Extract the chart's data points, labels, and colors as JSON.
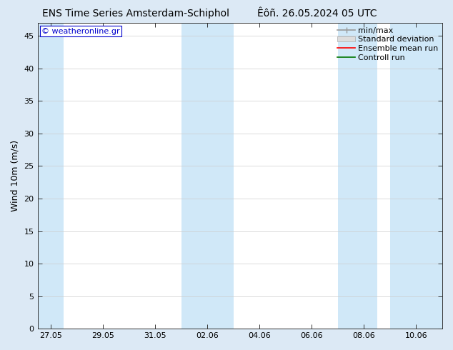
{
  "title_left": "ENS Time Series Amsterdam-Schiphol",
  "title_right": "Êôñ. 26.05.2024 05 UTC",
  "ylabel": "Wind 10m (m/s)",
  "watermark": "© weatheronline.gr",
  "watermark_color": "#0000cc",
  "bg_color": "#dce9f5",
  "plot_bg_color": "#ffffff",
  "xlim_start": 0.0,
  "xlim_end": 15.5,
  "ylim": [
    0,
    47
  ],
  "yticks": [
    0,
    5,
    10,
    15,
    20,
    25,
    30,
    35,
    40,
    45
  ],
  "xtick_labels": [
    "27.05",
    "29.05",
    "31.05",
    "02.06",
    "04.06",
    "06.06",
    "08.06",
    "10.06"
  ],
  "xtick_positions": [
    0.5,
    2.5,
    4.5,
    6.5,
    8.5,
    10.5,
    12.5,
    14.5
  ],
  "shaded_regions": [
    {
      "x_start": 0.0,
      "x_end": 1.0,
      "color": "#d0e8f8"
    },
    {
      "x_start": 5.5,
      "x_end": 7.5,
      "color": "#d0e8f8"
    },
    {
      "x_start": 11.5,
      "x_end": 13.0,
      "color": "#d0e8f8"
    },
    {
      "x_start": 13.5,
      "x_end": 15.5,
      "color": "#d0e8f8"
    }
  ],
  "legend_items": [
    {
      "label": "min/max",
      "color": "#aaaaaa",
      "type": "errorbar"
    },
    {
      "label": "Standard deviation",
      "color": "#cccccc",
      "type": "band"
    },
    {
      "label": "Ensemble mean run",
      "color": "#ff0000",
      "type": "line"
    },
    {
      "label": "Controll run",
      "color": "#007700",
      "type": "line"
    }
  ],
  "title_fontsize": 10,
  "tick_fontsize": 8,
  "ylabel_fontsize": 9,
  "legend_fontsize": 8,
  "watermark_fontsize": 8
}
